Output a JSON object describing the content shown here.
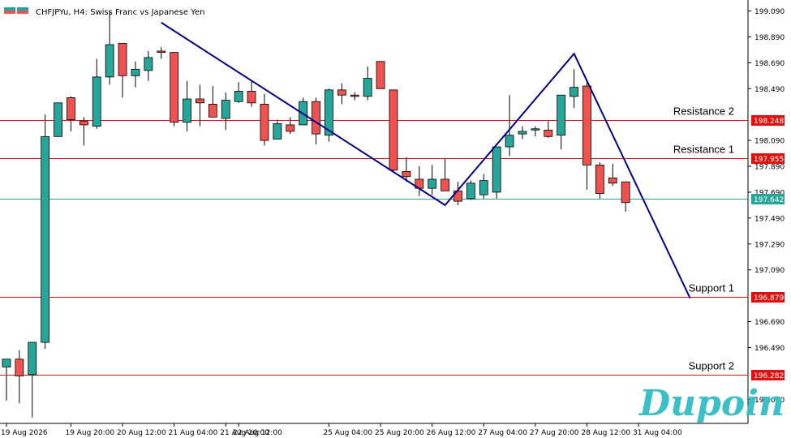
{
  "header": {
    "symbol_text": "CHFJPYu, H4:  Swiss Franc vs Japanese Yen"
  },
  "brand": {
    "logo_text": "Dupoin"
  },
  "colors": {
    "bull": "#26a69a",
    "bear": "#ef5350",
    "level_red": "#e01010",
    "level_green": "#26a69a",
    "pattern_line": "#00008b",
    "logo": "#3cc0c8"
  },
  "chart_data": {
    "type": "candlestick",
    "symbol": "CHFJPYu",
    "timeframe": "H4",
    "title": "Swiss Franc vs Japanese Yen",
    "ylim": [
      195.85,
      199.15
    ],
    "y_ticks": [
      "199.090",
      "198.890",
      "198.690",
      "198.490",
      "198.090",
      "197.890",
      "197.690",
      "197.490",
      "197.290",
      "197.090",
      "196.690",
      "196.490",
      "196.090"
    ],
    "x_labels": [
      "19 Aug 2026",
      "19 Aug 20:00",
      "20 Aug 12:00",
      "21 Aug 04:00",
      "21 Aug 20:00",
      "22 Aug 12:00",
      "25 Aug 04:00",
      "25 Aug 20:00",
      "26 Aug 12:00",
      "27 Aug 04:00",
      "27 Aug 20:00",
      "28 Aug 12:00",
      "31 Aug 04:00"
    ],
    "candles": [
      {
        "o": 196.34,
        "h": 196.4,
        "l": 196.08,
        "c": 196.4
      },
      {
        "o": 196.4,
        "h": 196.47,
        "l": 196.06,
        "c": 196.27
      },
      {
        "o": 196.28,
        "h": 196.53,
        "l": 195.95,
        "c": 196.53
      },
      {
        "o": 196.53,
        "h": 198.29,
        "l": 196.48,
        "c": 198.12
      },
      {
        "o": 198.12,
        "h": 198.38,
        "l": 198.12,
        "c": 198.38
      },
      {
        "o": 198.42,
        "h": 198.43,
        "l": 198.16,
        "c": 198.25
      },
      {
        "o": 198.24,
        "h": 198.27,
        "l": 198.05,
        "c": 198.21
      },
      {
        "o": 198.2,
        "h": 198.72,
        "l": 198.18,
        "c": 198.58
      },
      {
        "o": 198.58,
        "h": 199.09,
        "l": 198.52,
        "c": 198.83
      },
      {
        "o": 198.84,
        "h": 198.84,
        "l": 198.42,
        "c": 198.59
      },
      {
        "o": 198.59,
        "h": 198.7,
        "l": 198.5,
        "c": 198.64
      },
      {
        "o": 198.63,
        "h": 198.78,
        "l": 198.55,
        "c": 198.73
      },
      {
        "o": 198.78,
        "h": 198.81,
        "l": 198.72,
        "c": 198.77
      },
      {
        "o": 198.77,
        "h": 198.77,
        "l": 198.2,
        "c": 198.23
      },
      {
        "o": 198.23,
        "h": 198.55,
        "l": 198.16,
        "c": 198.41
      },
      {
        "o": 198.41,
        "h": 198.52,
        "l": 198.2,
        "c": 198.38
      },
      {
        "o": 198.37,
        "h": 198.51,
        "l": 198.27,
        "c": 198.27
      },
      {
        "o": 198.26,
        "h": 198.46,
        "l": 198.17,
        "c": 198.4
      },
      {
        "o": 198.39,
        "h": 198.54,
        "l": 198.38,
        "c": 198.47
      },
      {
        "o": 198.47,
        "h": 198.55,
        "l": 198.35,
        "c": 198.38
      },
      {
        "o": 198.37,
        "h": 198.45,
        "l": 198.05,
        "c": 198.09
      },
      {
        "o": 198.1,
        "h": 198.25,
        "l": 198.1,
        "c": 198.22
      },
      {
        "o": 198.21,
        "h": 198.27,
        "l": 198.14,
        "c": 198.16
      },
      {
        "o": 198.21,
        "h": 198.42,
        "l": 198.21,
        "c": 198.39
      },
      {
        "o": 198.39,
        "h": 198.42,
        "l": 198.06,
        "c": 198.14
      },
      {
        "o": 198.13,
        "h": 198.49,
        "l": 198.08,
        "c": 198.48
      },
      {
        "o": 198.48,
        "h": 198.53,
        "l": 198.37,
        "c": 198.44
      },
      {
        "o": 198.44,
        "h": 198.46,
        "l": 198.4,
        "c": 198.43
      },
      {
        "o": 198.43,
        "h": 198.66,
        "l": 198.4,
        "c": 198.57
      },
      {
        "o": 198.7,
        "h": 198.7,
        "l": 198.49,
        "c": 198.49
      },
      {
        "o": 198.48,
        "h": 198.48,
        "l": 197.84,
        "c": 197.86
      },
      {
        "o": 197.85,
        "h": 197.96,
        "l": 197.77,
        "c": 197.81
      },
      {
        "o": 197.79,
        "h": 197.89,
        "l": 197.66,
        "c": 197.72
      },
      {
        "o": 197.72,
        "h": 197.9,
        "l": 197.67,
        "c": 197.79
      },
      {
        "o": 197.79,
        "h": 197.95,
        "l": 197.71,
        "c": 197.7
      },
      {
        "o": 197.7,
        "h": 197.77,
        "l": 197.59,
        "c": 197.62
      },
      {
        "o": 197.64,
        "h": 197.78,
        "l": 197.63,
        "c": 197.76
      },
      {
        "o": 197.67,
        "h": 197.83,
        "l": 197.64,
        "c": 197.78
      },
      {
        "o": 197.69,
        "h": 198.04,
        "l": 197.64,
        "c": 198.04
      },
      {
        "o": 198.04,
        "h": 198.44,
        "l": 197.97,
        "c": 198.13
      },
      {
        "o": 198.14,
        "h": 198.2,
        "l": 198.1,
        "c": 198.16
      },
      {
        "o": 198.18,
        "h": 198.2,
        "l": 198.12,
        "c": 198.18
      },
      {
        "o": 198.17,
        "h": 198.24,
        "l": 198.11,
        "c": 198.12
      },
      {
        "o": 198.13,
        "h": 198.44,
        "l": 198.02,
        "c": 198.44
      },
      {
        "o": 198.43,
        "h": 198.64,
        "l": 198.34,
        "c": 198.5
      },
      {
        "o": 198.51,
        "h": 198.55,
        "l": 197.71,
        "c": 197.9
      },
      {
        "o": 197.9,
        "h": 197.92,
        "l": 197.64,
        "c": 197.68
      },
      {
        "o": 197.8,
        "h": 197.91,
        "l": 197.74,
        "c": 197.76
      },
      {
        "o": 197.77,
        "h": 197.77,
        "l": 197.54,
        "c": 197.61
      }
    ],
    "levels": [
      {
        "name": "Resistance 2",
        "value": "198.248",
        "color": "#e01010"
      },
      {
        "name": "Resistance 1",
        "value": "197.955",
        "color": "#e01010"
      },
      {
        "name": "",
        "value": "197.642",
        "color": "#26a69a"
      },
      {
        "name": "Support 1",
        "value": "196.879",
        "color": "#e01010"
      },
      {
        "name": "Support 2",
        "value": "196.282",
        "color": "#e01010"
      }
    ],
    "pattern_line": [
      {
        "x": "21 Aug 00:00",
        "y": 199.0
      },
      {
        "x": "26 Aug 16:00",
        "y": 197.59
      },
      {
        "x": "28 Aug 08:00",
        "y": 198.76
      },
      {
        "x": "31 Aug 20:00",
        "y": 196.87
      }
    ]
  }
}
